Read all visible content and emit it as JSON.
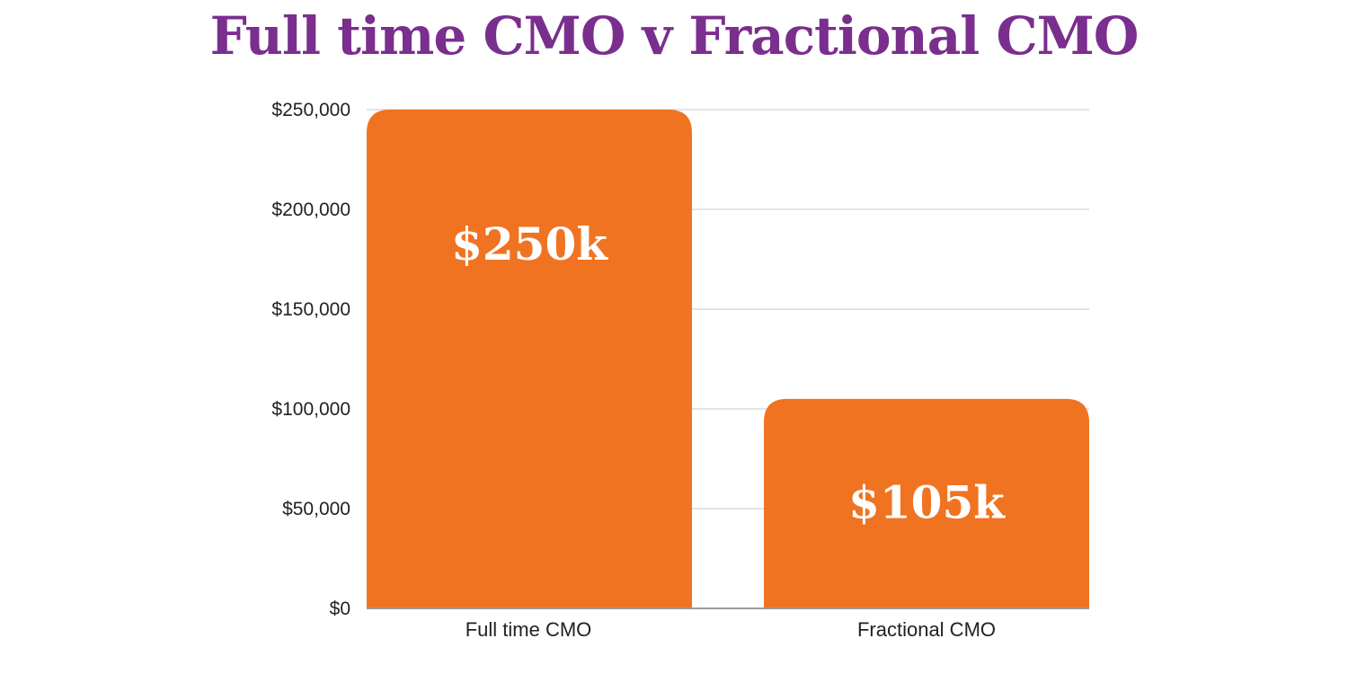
{
  "chart_data": {
    "type": "bar",
    "title": "Full time CMO v Fractional CMO",
    "categories": [
      "Full time CMO",
      "Fractional CMO"
    ],
    "values": [
      250000,
      105000
    ],
    "data_labels": [
      "$250k",
      "$105k"
    ],
    "yticks": [
      0,
      50000,
      100000,
      150000,
      200000,
      250000
    ],
    "ytick_labels": [
      "$0",
      "$50,000",
      "$100,000",
      "$150,000",
      "$200,000",
      "$250,000"
    ],
    "ylim": [
      0,
      250000
    ],
    "xlabel": "",
    "ylabel": "",
    "grid": true,
    "legend": "none"
  },
  "colors": {
    "title": "#7a2e8e",
    "bar": "#f07322",
    "grid": "#c8c8c8",
    "axis": "#9a9a9a",
    "data_label": "#ffffff"
  }
}
